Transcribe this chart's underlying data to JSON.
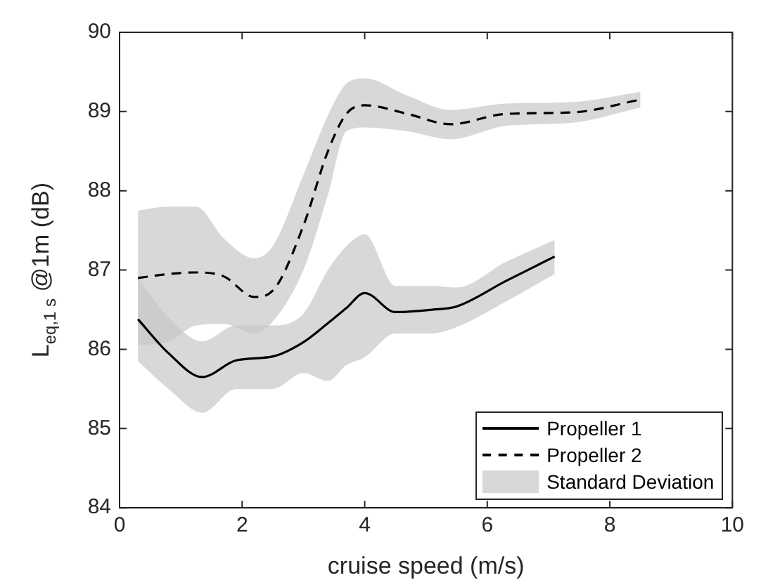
{
  "chart_data": {
    "type": "line",
    "xlabel": "cruise speed (m/s)",
    "ylabel": "L$_{eq,1 s}$ @1m (dB)",
    "xlim": [
      0,
      10
    ],
    "xticks": [
      0,
      2,
      4,
      6,
      8,
      10
    ],
    "ylim": [
      84,
      90
    ],
    "yticks": [
      84,
      85,
      86,
      87,
      88,
      89,
      90
    ],
    "legend": "bottom right",
    "grid": false,
    "marker": "none",
    "annotations": [
      "Standard Deviation"
    ],
    "series": [
      {
        "name": "Propeller 1",
        "color": "#000000",
        "line_style": "solid",
        "x": [
          0.3,
          0.8,
          1.35,
          1.9,
          2.5,
          3.0,
          3.4,
          3.7,
          4.0,
          4.5,
          5.1,
          5.5,
          6.3,
          7.1
        ],
        "values": [
          86.38,
          85.95,
          85.65,
          85.86,
          85.91,
          86.09,
          86.33,
          86.52,
          86.71,
          86.47,
          86.5,
          86.54,
          86.86,
          87.17
        ],
        "lower": [
          85.85,
          85.5,
          85.2,
          85.5,
          85.5,
          85.7,
          85.6,
          85.8,
          85.9,
          86.2,
          86.2,
          86.28,
          86.6,
          86.95
        ],
        "upper": [
          86.9,
          86.4,
          86.1,
          86.3,
          86.3,
          86.45,
          87.0,
          87.3,
          87.45,
          86.8,
          86.8,
          86.78,
          87.1,
          87.38
        ]
      },
      {
        "name": "Propeller 2",
        "color": "#000000",
        "line_style": "dashed",
        "x": [
          0.3,
          0.8,
          1.25,
          1.7,
          2.2,
          2.5,
          3.0,
          3.4,
          3.7,
          4.0,
          4.7,
          5.4,
          6.3,
          7.4,
          8.5
        ],
        "values": [
          86.9,
          86.95,
          86.97,
          86.92,
          86.66,
          86.74,
          87.56,
          88.5,
          88.97,
          89.08,
          88.97,
          88.84,
          88.97,
          88.99,
          89.15
        ],
        "lower": [
          86.05,
          86.1,
          86.3,
          86.32,
          86.2,
          86.35,
          87.0,
          87.95,
          88.75,
          88.8,
          88.75,
          88.65,
          88.82,
          88.86,
          89.05
        ],
        "upper": [
          87.75,
          87.8,
          87.8,
          87.4,
          87.15,
          87.3,
          88.2,
          88.95,
          89.35,
          89.42,
          89.2,
          89.02,
          89.1,
          89.12,
          89.25
        ]
      }
    ]
  }
}
